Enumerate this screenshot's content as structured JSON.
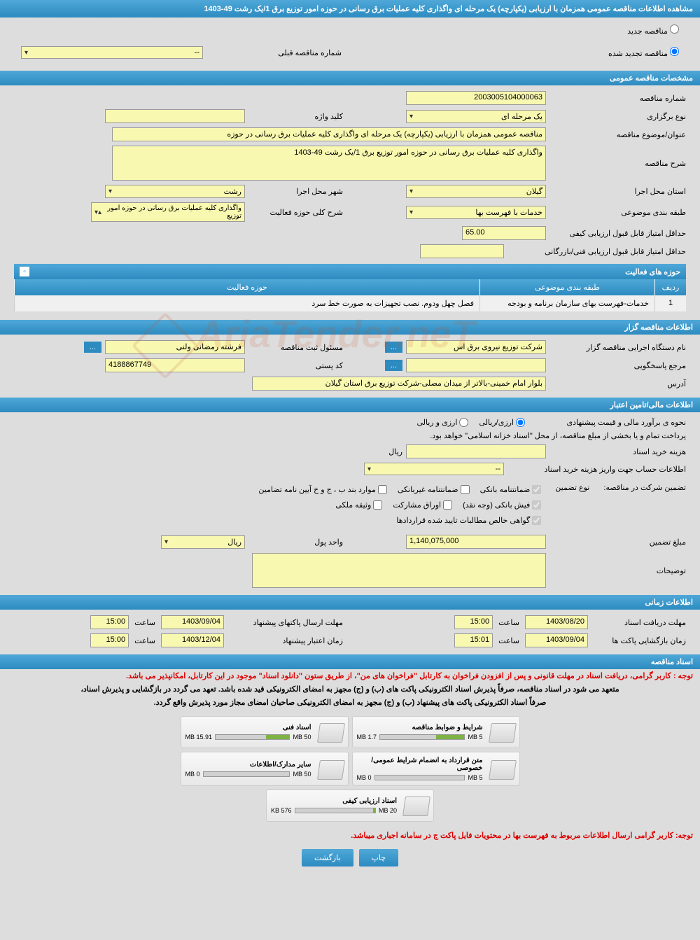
{
  "header": {
    "title": "مشاهده اطلاعات مناقصه عمومی همزمان با ارزیابی (یکپارچه) یک مرحله ای واگذاری کلیه عملیات برق رسانی در حوزه امور توزیع برق 1/یک رشت 49-1403"
  },
  "radios": {
    "new_tender": "مناقصه جدید",
    "renewed_tender": "مناقصه تجدید شده",
    "prev_number_label": "شماره مناقصه قبلی",
    "prev_number_value": "--"
  },
  "sections": {
    "general_spec": "مشخصات مناقصه عمومی",
    "activity_areas": "حوزه های فعالیت",
    "tenderer_info": "اطلاعات مناقصه گزار",
    "financial_info": "اطلاعات مالی/تامین اعتبار",
    "time_info": "اطلاعات زمانی",
    "tender_docs": "اسناد مناقصه"
  },
  "general": {
    "number_label": "شماره مناقصه",
    "number_value": "2003005104000063",
    "holding_type_label": "نوع برگزاری",
    "holding_type_value": "یک مرحله ای",
    "keyword_label": "کلید واژه",
    "keyword_value": "",
    "subject_label": "عنوان/موضوع مناقصه",
    "subject_value": "مناقصه عمومی همزمان با ارزیابی (یکپارچه) یک مرحله ای واگذاری کلیه عملیات برق رسانی در حوزه",
    "description_label": "شرح مناقصه",
    "description_value": "واگذاری کلیه عملیات برق رسانی در حوزه امور توزیع برق 1/یک رشت 49-1403",
    "province_label": "استان محل اجرا",
    "province_value": "گیلان",
    "city_label": "شهر محل اجرا",
    "city_value": "رشت",
    "category_label": "طبقه بندی موضوعی",
    "category_value": "خدمات با فهرست بها",
    "activity_sum_label": "شرح کلی حوزه فعالیت",
    "activity_sum_value": "واگذاری کلیه عملیات برق رسانی در حوزه امور توزیع",
    "min_quality_score_label": "حداقل امتیاز قابل قبول ارزیابی کیفی",
    "min_quality_score_value": "65.00",
    "min_tech_score_label": "حداقل امتیاز قابل قبول ارزیابی فنی/بازرگانی",
    "min_tech_score_value": ""
  },
  "activity_table": {
    "col_num": "ردیف",
    "col_category": "طبقه بندی موضوعی",
    "col_area": "حوزه فعالیت",
    "row1": {
      "num": "1",
      "category": "خدمات-فهرست بهای سازمان برنامه و بودجه",
      "area": "فصل چهل ودوم. نصب تجهیزات به صورت خط سرد"
    }
  },
  "tenderer": {
    "exec_name_label": "نام دستگاه اجرایی مناقصه گزار",
    "exec_name_value": "شرکت توزیع نیروی برق اس",
    "reg_officer_label": "مسئول ثبت مناقصه",
    "reg_officer_value": "فرشته رمضانی ولنی",
    "response_ref_label": "مرجع پاسخگویی",
    "response_ref_value": "",
    "postal_code_label": "کد پستی",
    "postal_code_value": "4188867749",
    "address_label": "آدرس",
    "address_value": "بلوار امام خمینی-بالاتر از میدان مصلی-شرکت توزیع برق استان گیلان",
    "dots": "..."
  },
  "financial": {
    "estimate_method_label": "نحوه ی برآورد مالی و قیمت پیشنهادی",
    "currency_rial": "ارزی/ریالی",
    "currency_foreign": "ارزی و ریالی",
    "payment_note": "پرداخت تمام و یا بخشی از مبلغ مناقصه، از محل \"اسناد خزانه اسلامی\" خواهد بود.",
    "doc_cost_label": "هزینه خرید اسناد",
    "doc_cost_value": "",
    "rial_unit": "ریال",
    "account_label": "اطلاعات حساب جهت واریز هزینه خرید اسناد",
    "account_value": "--",
    "guarantee_label": "تضمین شرکت در مناقصه:",
    "guarantee_type_label": "نوع تضمین",
    "bank_guarantee": "ضمانتنامه بانکی",
    "nonbank_guarantee": "ضمانتنامه غیربانکی",
    "clauses": "موارد بند ب ، ج و خ آیین نامه تضامین",
    "bank_receipt": "فیش بانکی (وجه نقد)",
    "shares": "اوراق مشارکت",
    "property": "وثیقه ملکی",
    "verified_claims": "گواهی خالص مطالبات تایید شده قراردادها",
    "guarantee_amount_label": "مبلغ تضمین",
    "guarantee_amount_value": "1,140,075,000",
    "currency_unit_label": "واحد پول",
    "currency_unit_value": "ریال",
    "notes_label": "توضیحات",
    "notes_value": ""
  },
  "timing": {
    "receipt_deadline_label": "مهلت دریافت اسناد",
    "receipt_date": "1403/08/20",
    "receipt_time": "15:00",
    "time_label": "ساعت",
    "submit_deadline_label": "مهلت ارسال پاکتهای پیشنهاد",
    "submit_date": "1403/09/04",
    "submit_time": "15:00",
    "opening_label": "زمان بازگشایی پاکت ها",
    "opening_date": "1403/09/04",
    "opening_time": "15:01",
    "validity_label": "زمان اعتبار پیشنهاد",
    "validity_date": "1403/12/04",
    "validity_time": "15:00"
  },
  "docs": {
    "notice1": "توجه : کاربر گرامی، دریافت اسناد در مهلت قانونی و پس از افزودن فراخوان به کارتابل \"فراخوان های من\"، از طریق ستون \"دانلود اسناد\" موجود در این کارتابل، امکانپذیر می باشد.",
    "notice2a": "متعهد می شود در اسناد مناقصه، صرفاً پذیرش اسناد الکترونیکی پاکت های (ب) و (ج) مجهز به امضای الکترونیکی قید شده باشد. تعهد می گردد در بازگشایی و پذیرش اسناد،",
    "notice2b": "صرفاً اسناد الکترونیکی پاکت های پیشنهاد (ب) و (ج) مجهز به امضای الکترونیکی صاحبان امضای مجاز مورد پذیرش واقع گردد.",
    "files": [
      {
        "title": "شرایط و ضوابط مناقصه",
        "used": "1.7 MB",
        "total": "5 MB",
        "percent": 34
      },
      {
        "title": "اسناد فنی",
        "used": "15.91 MB",
        "total": "50 MB",
        "percent": 32
      },
      {
        "title": "متن قرارداد به انضمام شرایط عمومی/خصوصی",
        "used": "0 MB",
        "total": "5 MB",
        "percent": 0
      },
      {
        "title": "سایر مدارک/اطلاعات",
        "used": "0 MB",
        "total": "50 MB",
        "percent": 0
      },
      {
        "title": "اسناد ارزیابی کیفی",
        "used": "576 KB",
        "total": "20 MB",
        "percent": 3
      }
    ],
    "bottom_notice": "توجه: کاربر گرامی ارسال اطلاعات مربوط به فهرست بها در محتویات فایل پاکت ج در سامانه اجباری میباشد."
  },
  "buttons": {
    "print": "چاپ",
    "back": "بازگشت"
  },
  "watermark": "AriaTender.neT"
}
